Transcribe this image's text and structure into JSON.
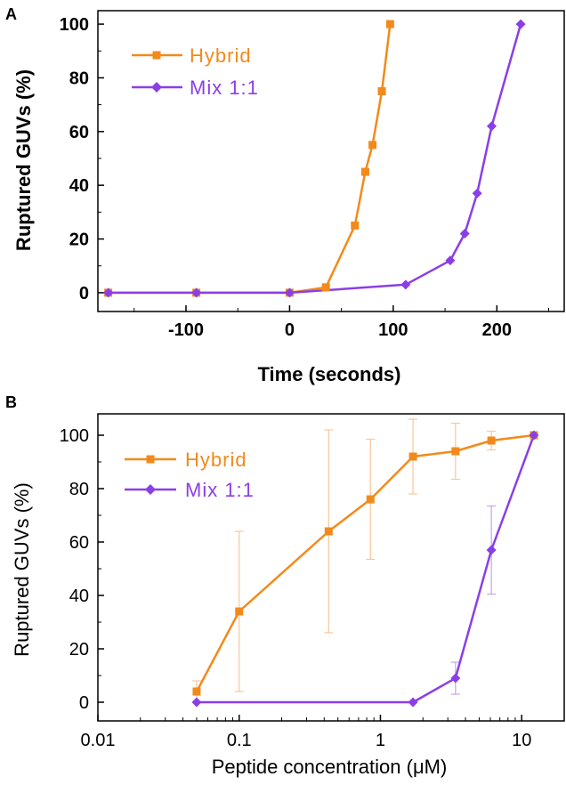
{
  "chart_data": [
    {
      "panel_label": "A",
      "type": "line",
      "xlabel": "Time (seconds)",
      "ylabel": "Ruptured GUVs (%)",
      "xlim": [
        -185,
        265
      ],
      "ylim": [
        -7,
        105
      ],
      "x_ticks": [
        -100,
        0,
        100,
        200
      ],
      "y_ticks": [
        0,
        20,
        40,
        60,
        80,
        100
      ],
      "legend_position": "top-left",
      "series": [
        {
          "name": "Hybrid",
          "color": "#F28A1B",
          "marker": "square",
          "x": [
            -175,
            -90,
            0,
            35,
            63,
            73,
            80,
            89,
            97
          ],
          "y": [
            0,
            0,
            0,
            2,
            25,
            45,
            55,
            75,
            100
          ]
        },
        {
          "name": "Mix 1:1",
          "color": "#8A3FE6",
          "marker": "diamond",
          "x": [
            -175,
            -90,
            0,
            112,
            155,
            169,
            181,
            195,
            223
          ],
          "y": [
            0,
            0,
            0,
            3,
            12,
            22,
            37,
            62,
            100
          ]
        }
      ]
    },
    {
      "panel_label": "B",
      "type": "line",
      "xscale": "log",
      "xlabel": "Peptide concentration (μM)",
      "ylabel": "Ruptured GUVs (%)",
      "xlim": [
        0.01,
        20
      ],
      "ylim": [
        -7,
        108
      ],
      "x_ticks": [
        0.01,
        0.1,
        1,
        10
      ],
      "x_tick_labels": [
        "0.01",
        "0.1",
        "1",
        "10"
      ],
      "y_ticks": [
        0,
        20,
        40,
        60,
        80,
        100
      ],
      "legend_position": "top-left",
      "series": [
        {
          "name": "Hybrid",
          "color": "#F28A1B",
          "marker": "square",
          "x": [
            0.05,
            0.1,
            0.43,
            0.85,
            1.7,
            3.4,
            6.1,
            12.2
          ],
          "y": [
            4,
            34,
            64,
            76,
            92,
            94,
            98,
            100
          ],
          "error": [
            4,
            30,
            38,
            22.5,
            14,
            10.5,
            3.5,
            0
          ]
        },
        {
          "name": "Mix 1:1",
          "color": "#8A3FE6",
          "marker": "diamond",
          "x": [
            0.05,
            1.7,
            3.4,
            6.1,
            12.2
          ],
          "y": [
            0,
            0,
            9,
            57,
            100
          ],
          "error": [
            0,
            0,
            6,
            16.5,
            0
          ]
        }
      ]
    }
  ]
}
